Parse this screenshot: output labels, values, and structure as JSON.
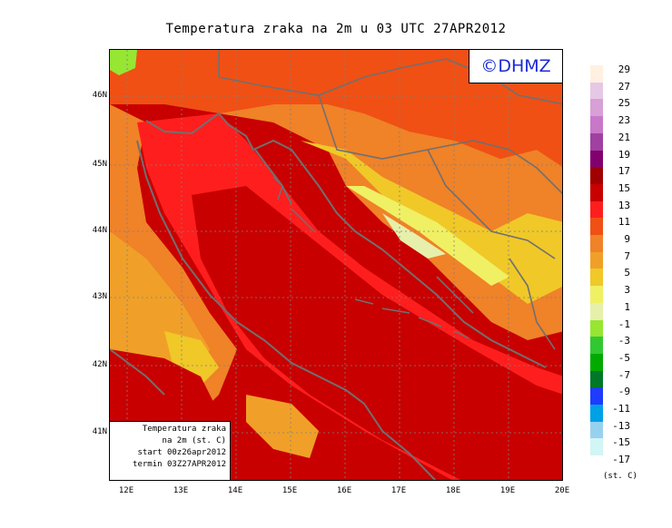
{
  "title": "Temperatura zraka na 2m u 03 UTC 27APR2012",
  "logo_text": "©DHMZ",
  "infobox": {
    "line1": "Temperatura zraka",
    "line2": "na 2m (st. C)",
    "line3": "start 00z26apr2012",
    "line4": "termin 03Z27APR2012"
  },
  "lat_labels": [
    "46N",
    "45N",
    "44N",
    "43N",
    "42N",
    "41N"
  ],
  "lon_labels": [
    "12E",
    "13E",
    "14E",
    "15E",
    "16E",
    "17E",
    "18E",
    "19E",
    "20E"
  ],
  "legend": {
    "units": "(st. C)",
    "labels": [
      "29",
      "27",
      "25",
      "23",
      "21",
      "19",
      "17",
      "15",
      "13",
      "11",
      "9",
      "7",
      "5",
      "3",
      "1",
      "-1",
      "-3",
      "-5",
      "-7",
      "-9",
      "-11",
      "-13",
      "-15",
      "-17"
    ],
    "colors": [
      "#fff0e0",
      "#e6c8e6",
      "#d7a0d7",
      "#c878c8",
      "#a040a0",
      "#82006e",
      "#a00000",
      "#c80000",
      "#ff1e1e",
      "#f05014",
      "#f08228",
      "#f0a028",
      "#f0c828",
      "#f0f064",
      "#e6f0aa",
      "#96e632",
      "#32c832",
      "#00aa00",
      "#007828",
      "#1e3cff",
      "#00a0e6",
      "#96d2f0",
      "#d2f5f5",
      "#ffffff"
    ]
  }
}
